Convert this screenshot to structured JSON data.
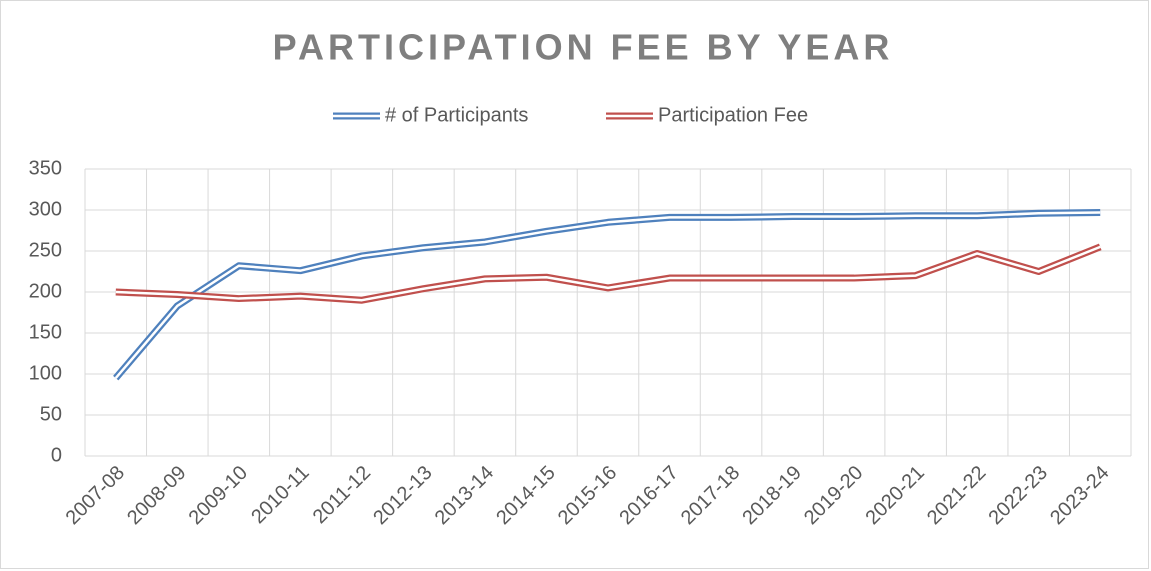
{
  "chart_data": {
    "type": "line",
    "title": "PARTICIPATION FEE BY YEAR",
    "categories": [
      "2007-08",
      "2008-09",
      "2009-10",
      "2010-11",
      "2011-12",
      "2012-13",
      "2013-14",
      "2014-15",
      "2015-16",
      "2016-17",
      "2017-18",
      "2018-19",
      "2019-20",
      "2020-21",
      "2021-22",
      "2022-23",
      "2023-24"
    ],
    "series": [
      {
        "name": "# of Participants",
        "color": "#4f81bd",
        "values": [
          95,
          183,
          232,
          226,
          244,
          254,
          261,
          274,
          285,
          291,
          291,
          292,
          292,
          293,
          293,
          296,
          297
        ]
      },
      {
        "name": "Participation Fee",
        "color": "#c0504d",
        "values": [
          200,
          197,
          192,
          195,
          190,
          204,
          216,
          218,
          205,
          217,
          217,
          217,
          217,
          220,
          247,
          225,
          255
        ]
      }
    ],
    "ylim": [
      0,
      350
    ],
    "yticks": [
      0,
      50,
      100,
      150,
      200,
      250,
      300,
      350
    ],
    "grid": true,
    "legend": "top"
  }
}
